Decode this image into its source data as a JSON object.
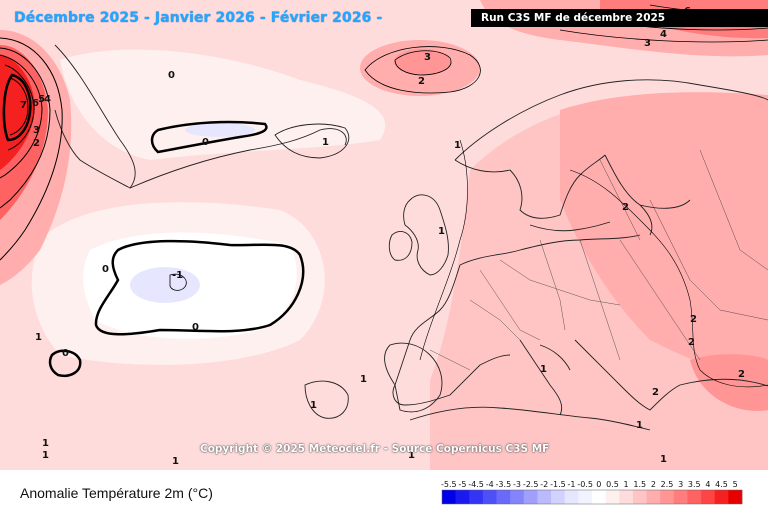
{
  "header": {
    "title": "Décembre 2025 - Janvier 2026 - Février 2026 -",
    "run": "Run C3S MF de décembre 2025"
  },
  "map": {
    "copyright": "Copyright © 2025 Meteociel.fr - Source Copernicus C3S MF",
    "contour_labels": {
      "greenland_7": "7",
      "greenland_6": "6",
      "greenland_5": "5",
      "greenland_4": "4",
      "greenland_3": "3",
      "greenland_2": "2",
      "labrador_1": "1",
      "arctic_0": "0",
      "north_atlantic_0": "0",
      "norway_sea_3": "3",
      "norway_sea_2": "2",
      "top_right_6": "6",
      "top_right_4": "4",
      "top_right_3": "3",
      "iceland_1": "1",
      "faroe_1": "1",
      "uk_1": "1",
      "atlantic_0_a": "0",
      "atlantic_0_b": "0",
      "atlantic_minus1": "-1",
      "azores_0": "0",
      "sweden_2": "2",
      "russia_2": "2",
      "balkan_2_a": "2",
      "balkan_2_b": "2",
      "turkey_2": "2",
      "med_1_a": "1",
      "med_1_b": "1",
      "africa_1_a": "1",
      "africa_1_b": "1",
      "sw_1_a": "1",
      "sw_1_b": "1",
      "sw_1_c": "1",
      "south_1": "1",
      "bottom_1": "1"
    }
  },
  "legend": {
    "title": "Anomalie Température 2m (°C)",
    "ticks": [
      "-5.5",
      "-5",
      "-4.5",
      "-4",
      "-3.5",
      "-3",
      "-2.5",
      "-2",
      "-1.5",
      "-1",
      "-0.5",
      "0",
      "0.5",
      "1",
      "1.5",
      "2",
      "2.5",
      "3",
      "3.5",
      "4",
      "4.5",
      "5"
    ],
    "colors": [
      "#0000e6",
      "#1a1aef",
      "#3434f5",
      "#4f4ff8",
      "#6a6afa",
      "#8585fb",
      "#a0a0fc",
      "#babafd",
      "#d2d2fe",
      "#e6e6ff",
      "#f3f3ff",
      "#ffffff",
      "#fff0f0",
      "#ffdcdc",
      "#ffc5c5",
      "#ffadad",
      "#ff9595",
      "#ff7d7d",
      "#ff6262",
      "#ff4444",
      "#f52020",
      "#e60000"
    ]
  }
}
